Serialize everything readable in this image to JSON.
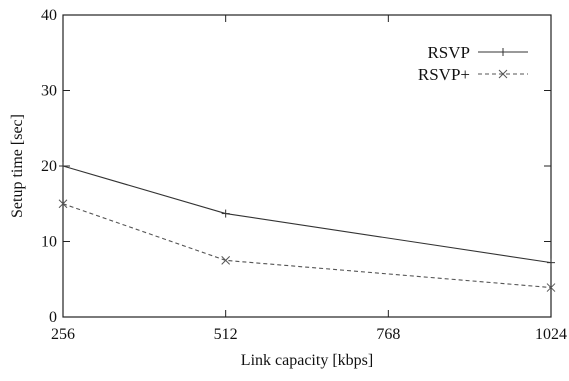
{
  "chart_data": {
    "type": "line",
    "xlabel": "Link capacity [kbps]",
    "ylabel": "Setup time [sec]",
    "xlim": [
      256,
      1024
    ],
    "ylim": [
      0,
      40
    ],
    "x_ticks": [
      256,
      512,
      768,
      1024
    ],
    "y_ticks": [
      0,
      10,
      20,
      30,
      40
    ],
    "grid": false,
    "legend_position": "top-right",
    "series": [
      {
        "name": "RSVP",
        "marker": "plus",
        "line_style": "solid",
        "color": "#333333",
        "x": [
          256,
          512,
          1024
        ],
        "y": [
          20,
          13.7,
          7.2
        ]
      },
      {
        "name": "RSVP+",
        "marker": "x",
        "line_style": "dashed",
        "color": "#555555",
        "x": [
          256,
          512,
          1024
        ],
        "y": [
          15,
          7.5,
          3.9
        ]
      }
    ]
  }
}
